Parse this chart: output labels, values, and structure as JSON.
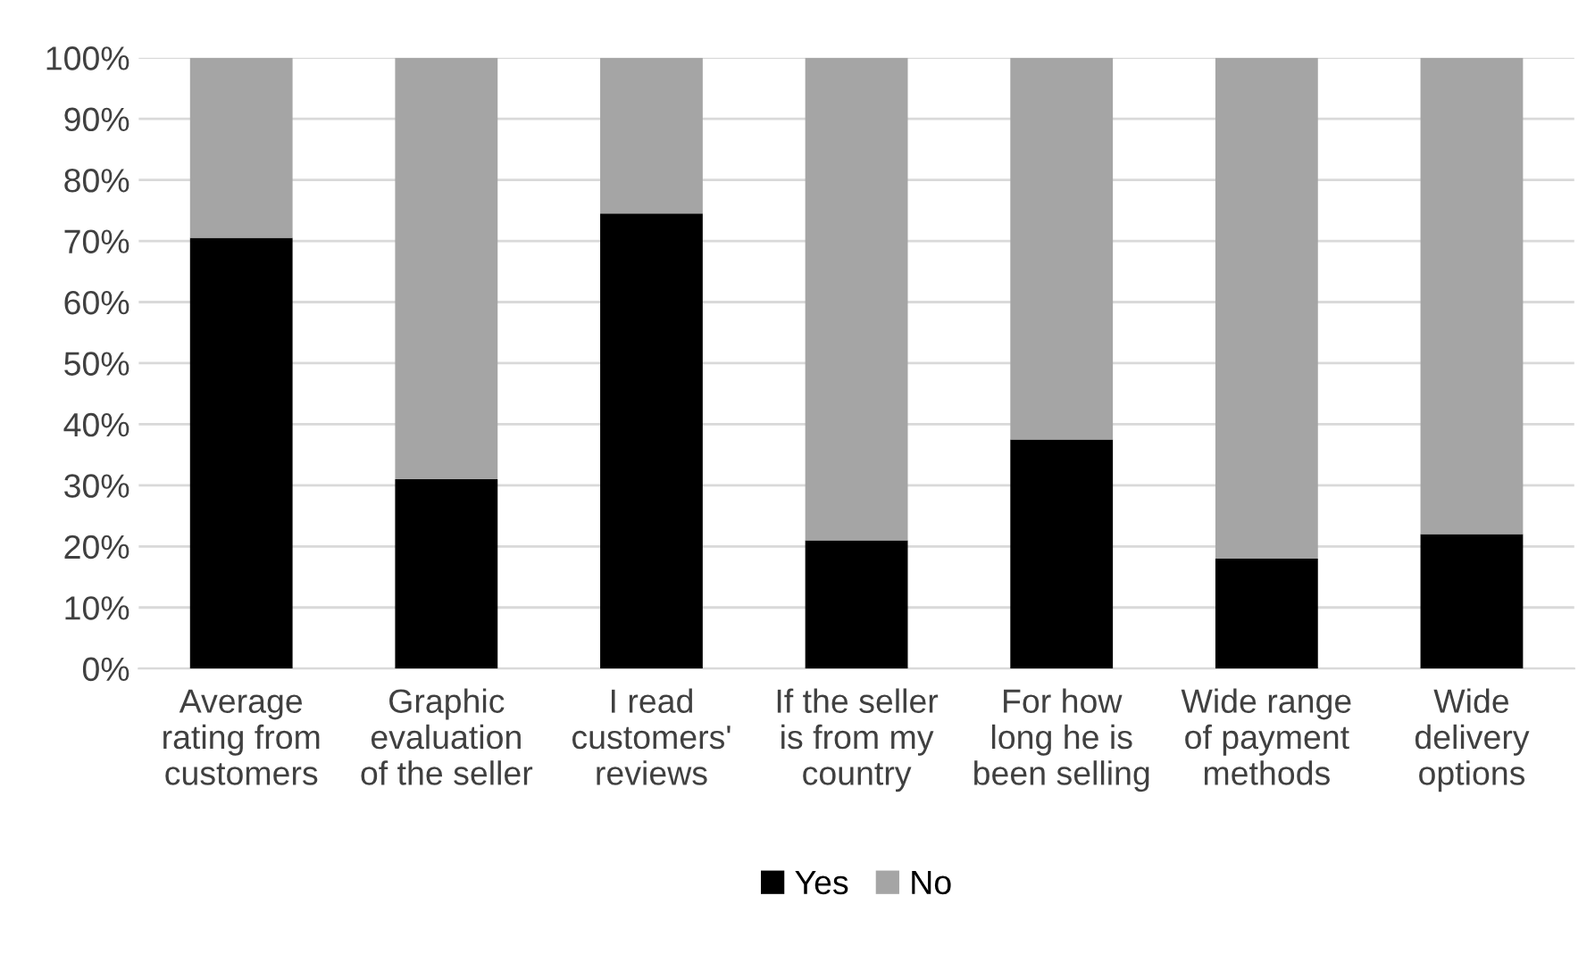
{
  "chart_data": {
    "type": "bar",
    "stacked": true,
    "categories": [
      "Average\nrating from\ncustomers",
      "Graphic\nevaluation\nof the seller",
      "I read\ncustomers'\nreviews",
      "If the seller\nis from my\ncountry",
      "For how\nlong he is\nbeen selling",
      "Wide range\nof payment\nmethods",
      "Wide\ndelivery\noptions"
    ],
    "series": [
      {
        "name": "Yes",
        "color": "#000000",
        "values": [
          70.5,
          31,
          74.5,
          21,
          37.5,
          18,
          22
        ]
      },
      {
        "name": "No",
        "color": "#a5a5a5",
        "values": [
          29.5,
          69,
          25.5,
          79,
          62.5,
          82,
          78
        ]
      }
    ],
    "ylim": [
      0,
      100
    ],
    "yticks": [
      {
        "value": 0,
        "label": "0%"
      },
      {
        "value": 10,
        "label": "10%"
      },
      {
        "value": 20,
        "label": "20%"
      },
      {
        "value": 30,
        "label": "30%"
      },
      {
        "value": 40,
        "label": "40%"
      },
      {
        "value": 50,
        "label": "50%"
      },
      {
        "value": 60,
        "label": "60%"
      },
      {
        "value": 70,
        "label": "70%"
      },
      {
        "value": 80,
        "label": "80%"
      },
      {
        "value": 90,
        "label": "90%"
      },
      {
        "value": 100,
        "label": "100%"
      }
    ],
    "grid": "y",
    "legend": "bottom"
  }
}
